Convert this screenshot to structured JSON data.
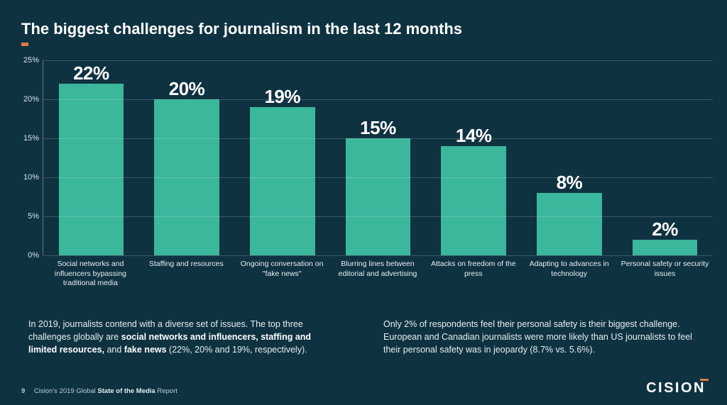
{
  "title": "The biggest challenges for journalism in the last 12 months",
  "accent_color": "#e07a4a",
  "background_color": "#0f3241",
  "chart": {
    "type": "bar",
    "bar_color": "#3bb79c",
    "text_color": "#ffffff",
    "grid_color": "rgba(255,255,255,0.18)",
    "value_fontsize": 26,
    "label_fontsize": 10.5,
    "ylim": [
      0,
      25
    ],
    "ytick_step": 5,
    "y_ticks": [
      "0%",
      "5%",
      "10%",
      "15%",
      "20%",
      "25%"
    ],
    "bar_width": 0.72,
    "categories": [
      "Social networks and influencers bypassing traditional media",
      "Staffing and resources",
      "Ongoing conversation on \"fake news\"",
      "Blurring lines between editorial and advertising",
      "Attacks on freedom of the press",
      "Adapting to advances in technology",
      "Personal safety or security issues"
    ],
    "values": [
      22,
      20,
      19,
      15,
      14,
      8,
      2
    ],
    "value_labels": [
      "22%",
      "20%",
      "19%",
      "15%",
      "14%",
      "8%",
      "2%"
    ]
  },
  "body_left_html": "In 2019, journalists contend with a diverse set of issues. The top three challenges globally are <b>social networks and influencers, staffing and limited resources,</b> and <b>fake news</b> (22%, 20% and 19%, respectively).",
  "body_right_html": "Only 2% of respondents feel their personal safety is their biggest challenge. European and Canadian journalists were more likely than US journalists to feel their personal safety was in jeopardy (8.7% vs. 5.6%).",
  "footer": {
    "page": "9",
    "text_html": "Cision's 2019 Global <b>State of the Media</b> Report"
  },
  "logo": "CISION"
}
